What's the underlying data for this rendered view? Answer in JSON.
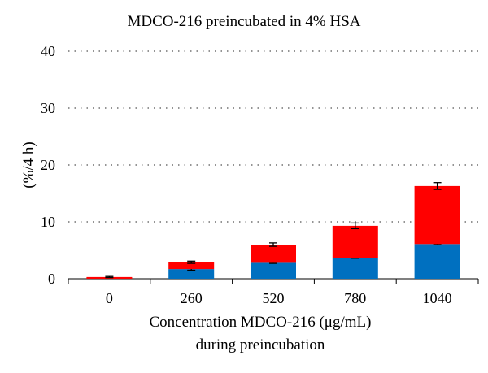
{
  "chart_data": {
    "type": "bar",
    "stacked": true,
    "title": "MDCO-216 preincubated in 4% HSA",
    "xlabel_lines": [
      "Concentration MDCO-216 (μg/mL)",
      "during preincubation"
    ],
    "ylabel": "(%/4 h)",
    "categories": [
      "0",
      "260",
      "520",
      "780",
      "1040"
    ],
    "ylim": [
      0,
      40
    ],
    "yticks": [
      0,
      10,
      20,
      30,
      40
    ],
    "grid": "dotted horizontal",
    "series": [
      {
        "color": "#0070C0",
        "values": [
          0.0,
          1.7,
          2.8,
          3.7,
          6.1
        ],
        "errors": [
          0.0,
          0.2,
          0.1,
          0.1,
          0.1
        ]
      },
      {
        "color": "#FF0000",
        "values": [
          0.3,
          1.2,
          3.2,
          5.6,
          10.2
        ],
        "errors": [
          0.1,
          0.2,
          0.3,
          0.5,
          0.6
        ]
      }
    ]
  }
}
